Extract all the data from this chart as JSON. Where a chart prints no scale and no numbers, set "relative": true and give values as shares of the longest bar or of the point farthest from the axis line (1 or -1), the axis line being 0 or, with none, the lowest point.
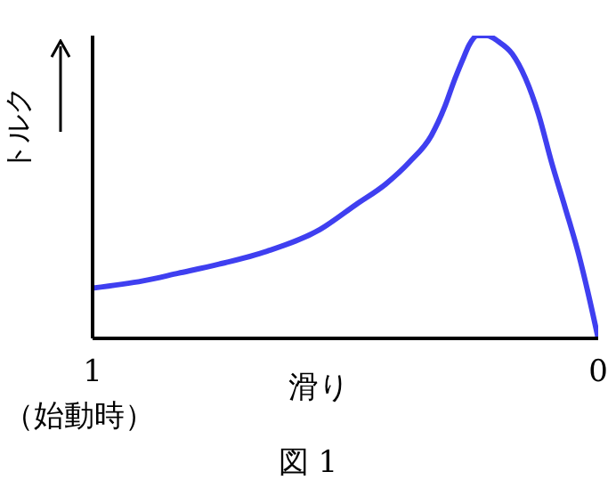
{
  "chart_data": {
    "type": "line",
    "xlabel": "滑り",
    "ylabel": "トルク",
    "annotations": [
      "（始動時）",
      "図 1"
    ],
    "relative": true,
    "xlim": [
      1,
      0
    ],
    "xticks": [
      1,
      0
    ],
    "grid": false,
    "legend": false,
    "marker": "none",
    "line_style": "solid",
    "series": [
      {
        "color": "#3f3ff0",
        "x": [
          1,
          0.9,
          0.831,
          0.75,
          0.655,
          0.55,
          0.479,
          0.42,
          0.373,
          0.33,
          0.303,
          0.285,
          0.268,
          0.255,
          0.239,
          0.22,
          0.197,
          0.17,
          0.144,
          0.118,
          0.092,
          0.065,
          0.039,
          0.02,
          0
        ],
        "values": [
          0.166,
          0.19,
          0.215,
          0.245,
          0.288,
          0.36,
          0.442,
          0.51,
          0.583,
          0.67,
          0.767,
          0.85,
          0.92,
          0.97,
          1,
          1,
          0.98,
          0.94,
          0.86,
          0.74,
          0.58,
          0.43,
          0.28,
          0.15,
          0
        ]
      }
    ]
  }
}
